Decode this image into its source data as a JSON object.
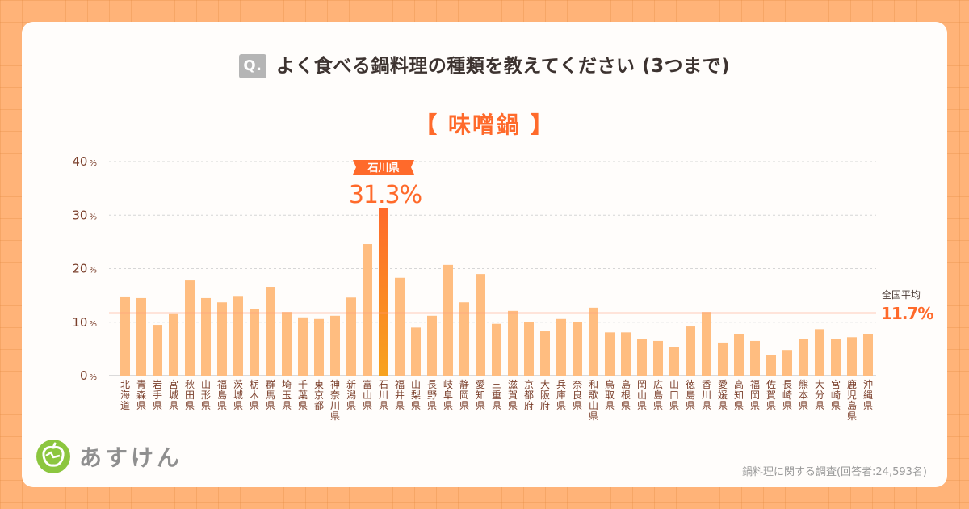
{
  "header": {
    "q_badge": "Q.",
    "question": "よく食べる鍋料理の種類を教えてください (3つまで)",
    "category": "【 味噌鍋 】"
  },
  "brand": {
    "logo_text": "あすけん"
  },
  "footer": {
    "source": "鍋料理に関する調査(回答者:24,593名)"
  },
  "colors": {
    "bar": "#ffbd80",
    "highlight_top": "#ff6a2b",
    "highlight_bottom": "#f7a31f",
    "average_line": "#ff9a7a",
    "accent": "#ff6a2b",
    "axis_text": "#7a3e2a"
  },
  "chart_data": {
    "type": "bar",
    "title": "よく食べる鍋料理の種類を教えてください (3つまで)",
    "subtitle": "【 味噌鍋 】",
    "ylim": [
      0,
      40
    ],
    "yticks": [
      0,
      10,
      20,
      30,
      40
    ],
    "ytick_labels": [
      "0",
      "10",
      "20",
      "30",
      "40"
    ],
    "ytick_unit": "%",
    "grid": true,
    "categories": [
      "北海道",
      "青森県",
      "岩手県",
      "宮城県",
      "秋田県",
      "山形県",
      "福島県",
      "茨城県",
      "栃木県",
      "群馬県",
      "埼玉県",
      "千葉県",
      "東京都",
      "神奈川県",
      "新潟県",
      "富山県",
      "石川県",
      "福井県",
      "山梨県",
      "長野県",
      "岐阜県",
      "静岡県",
      "愛知県",
      "三重県",
      "滋賀県",
      "京都府",
      "大阪府",
      "兵庫県",
      "奈良県",
      "和歌山県",
      "鳥取県",
      "島根県",
      "岡山県",
      "広島県",
      "山口県",
      "徳島県",
      "香川県",
      "愛媛県",
      "高知県",
      "福岡県",
      "佐賀県",
      "長崎県",
      "熊本県",
      "大分県",
      "宮崎県",
      "鹿児島県",
      "沖縄県"
    ],
    "values": [
      14.8,
      14.5,
      9.5,
      11.5,
      17.8,
      14.5,
      13.7,
      14.9,
      12.5,
      16.6,
      11.9,
      10.9,
      10.6,
      11.2,
      14.6,
      24.6,
      31.3,
      18.3,
      9.0,
      11.2,
      20.7,
      13.7,
      19.0,
      9.7,
      12.1,
      10.1,
      8.3,
      10.6,
      10.0,
      12.7,
      8.1,
      8.1,
      6.9,
      6.5,
      5.4,
      9.2,
      11.9,
      6.2,
      7.8,
      6.5,
      3.8,
      4.8,
      6.9,
      8.7,
      6.8,
      7.2,
      7.8
    ],
    "highlight": {
      "category": "石川県",
      "label": "石川県",
      "value_label": "31.3%"
    },
    "average": {
      "label": "全国平均",
      "value": 11.7,
      "value_label": "11.7%"
    }
  }
}
